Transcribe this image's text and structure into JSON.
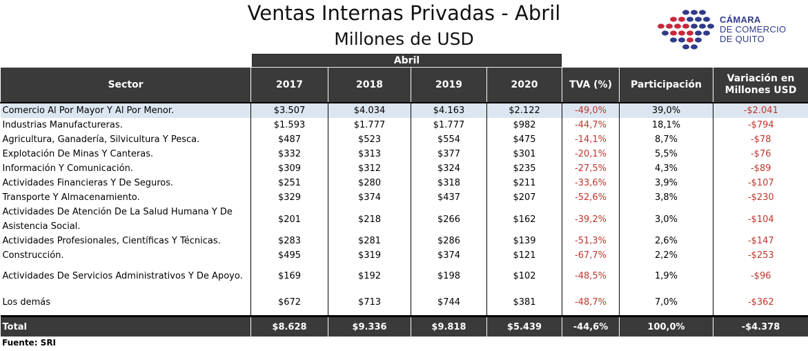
{
  "title": "Ventas Internas Privadas - Abril",
  "subtitle": "Millones de USD",
  "logo": {
    "line1": "CÁMARA",
    "line2": "DE COMERCIO",
    "line3": "DE QUITO",
    "color_blue": "#2f3a8a",
    "color_red": "#c8283c"
  },
  "band_label": "Abril",
  "headers": {
    "sector": "Sector",
    "y2017": "2017",
    "y2018": "2018",
    "y2019": "2019",
    "y2020": "2020",
    "tva": "TVA (%)",
    "participacion": "Participación",
    "variacion": "Variación en Millones USD"
  },
  "rows": [
    {
      "sector": "Comercio Al Por Mayor Y Al Por Menor.",
      "y2017": "$3.507",
      "y2018": "$4.034",
      "y2019": "$4.163",
      "y2020": "$2.122",
      "tva": "-49,0%",
      "participacion": "39,0%",
      "variacion": "-$2.041"
    },
    {
      "sector": "Industrias Manufactureras.",
      "y2017": "$1.593",
      "y2018": "$1.777",
      "y2019": "$1.777",
      "y2020": "$982",
      "tva": "-44,7%",
      "participacion": "18,1%",
      "variacion": "-$794"
    },
    {
      "sector": "Agricultura, Ganadería,  Silvicultura Y Pesca.",
      "y2017": "$487",
      "y2018": "$523",
      "y2019": "$554",
      "y2020": "$475",
      "tva": "-14,1%",
      "participacion": "8,7%",
      "variacion": "-$78"
    },
    {
      "sector": "Explotación De Minas Y Canteras.",
      "y2017": "$332",
      "y2018": "$313",
      "y2019": "$377",
      "y2020": "$301",
      "tva": "-20,1%",
      "participacion": "5,5%",
      "variacion": "-$76"
    },
    {
      "sector": "Información Y Comunicación.",
      "y2017": "$309",
      "y2018": "$312",
      "y2019": "$324",
      "y2020": "$235",
      "tva": "-27,5%",
      "participacion": "4,3%",
      "variacion": "-$89"
    },
    {
      "sector": "Actividades Financieras Y De Seguros.",
      "y2017": "$251",
      "y2018": "$280",
      "y2019": "$318",
      "y2020": "$211",
      "tva": "-33,6%",
      "participacion": "3,9%",
      "variacion": "-$107"
    },
    {
      "sector": "Transporte Y Almacenamiento.",
      "y2017": "$329",
      "y2018": "$374",
      "y2019": "$437",
      "y2020": "$207",
      "tva": "-52,6%",
      "participacion": "3,8%",
      "variacion": "-$230"
    },
    {
      "sector": "Actividades De Atención De La Salud Humana Y De Asistencia Social.",
      "y2017": "$201",
      "y2018": "$218",
      "y2019": "$266",
      "y2020": "$162",
      "tva": "-39,2%",
      "participacion": "3,0%",
      "variacion": "-$104"
    },
    {
      "sector": "Actividades Profesionales, Científicas Y Técnicas.",
      "y2017": "$283",
      "y2018": "$281",
      "y2019": "$286",
      "y2020": "$139",
      "tva": "-51,3%",
      "participacion": "2,6%",
      "variacion": "-$147"
    },
    {
      "sector": "Construcción.",
      "y2017": "$495",
      "y2018": "$319",
      "y2019": "$374",
      "y2020": "$121",
      "tva": "-67,7%",
      "participacion": "2,2%",
      "variacion": "-$253"
    },
    {
      "sector": "Actividades De Servicios Administrativos Y De Apoyo.",
      "y2017": "$169",
      "y2018": "$192",
      "y2019": "$198",
      "y2020": "$102",
      "tva": "-48,5%",
      "participacion": "1,9%",
      "variacion": "-$96"
    },
    {
      "sector": "Los demás",
      "y2017": "$672",
      "y2018": "$713",
      "y2019": "$744",
      "y2020": "$381",
      "tva": "-48,7%",
      "participacion": "7,0%",
      "variacion": "-$362"
    }
  ],
  "total": {
    "sector": "Total",
    "y2017": "$8.628",
    "y2018": "$9.336",
    "y2019": "$9.818",
    "y2020": "$5.439",
    "tva": "-44,6%",
    "participacion": "100,0%",
    "variacion": "-$4.378"
  },
  "source": "Fuente: SRI",
  "colors": {
    "header_bg": "#3a3a3a",
    "highlight": "#dce6f1",
    "negative": "#c0342b"
  }
}
